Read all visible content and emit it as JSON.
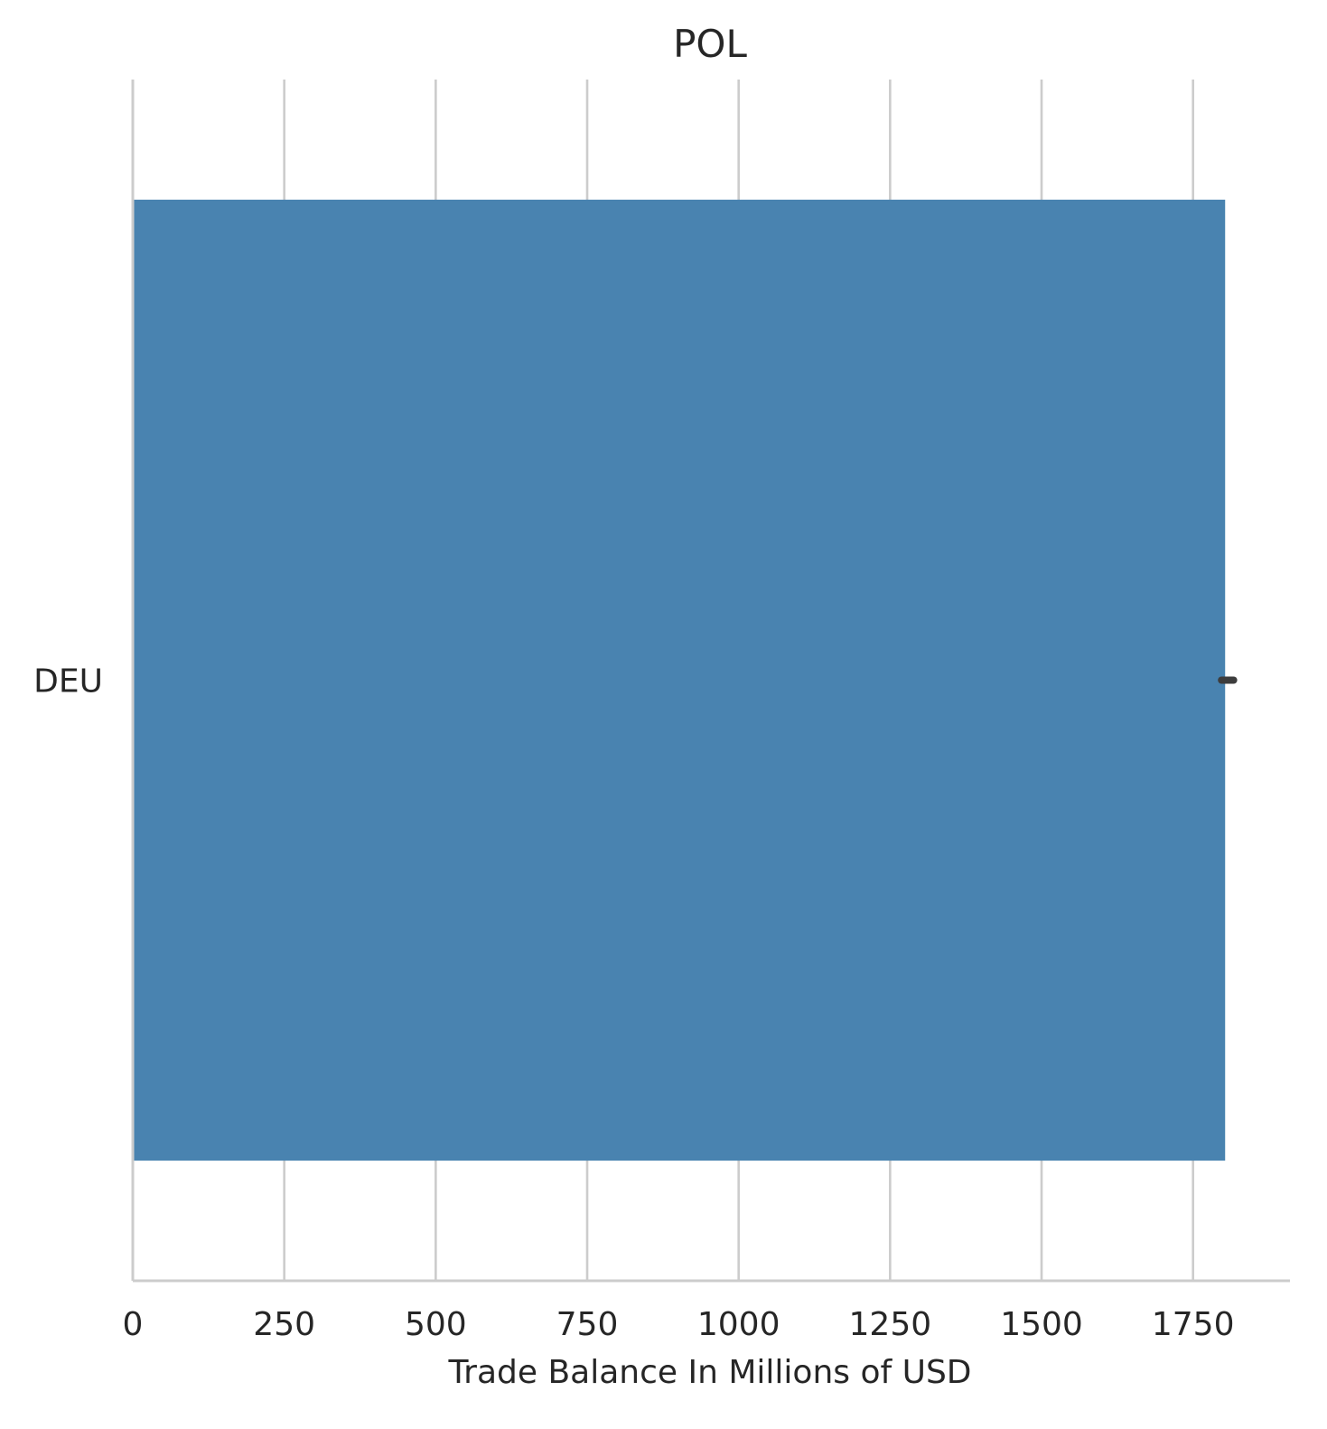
{
  "chart_data": {
    "type": "bar",
    "orientation": "horizontal",
    "title": "POL",
    "xlabel": "Trade Balance In Millions of USD",
    "ylabel": "",
    "categories": [
      "DEU"
    ],
    "values": [
      1803
    ],
    "error_bars": [
      [
        1797,
        1817
      ]
    ],
    "xlim": [
      0,
      1910
    ],
    "xticks": [
      0,
      250,
      500,
      750,
      1000,
      1250,
      1500,
      1750
    ],
    "xtick_labels": [
      "0",
      "250",
      "500",
      "750",
      "1000",
      "1250",
      "1500",
      "1750"
    ],
    "grid": "vertical",
    "legend": "none",
    "colors": {
      "bar": "#4983b0",
      "grid": "#cccccc",
      "axis": "#cccccc",
      "error_bar": "#3d3d3d",
      "text": "#262626"
    }
  }
}
